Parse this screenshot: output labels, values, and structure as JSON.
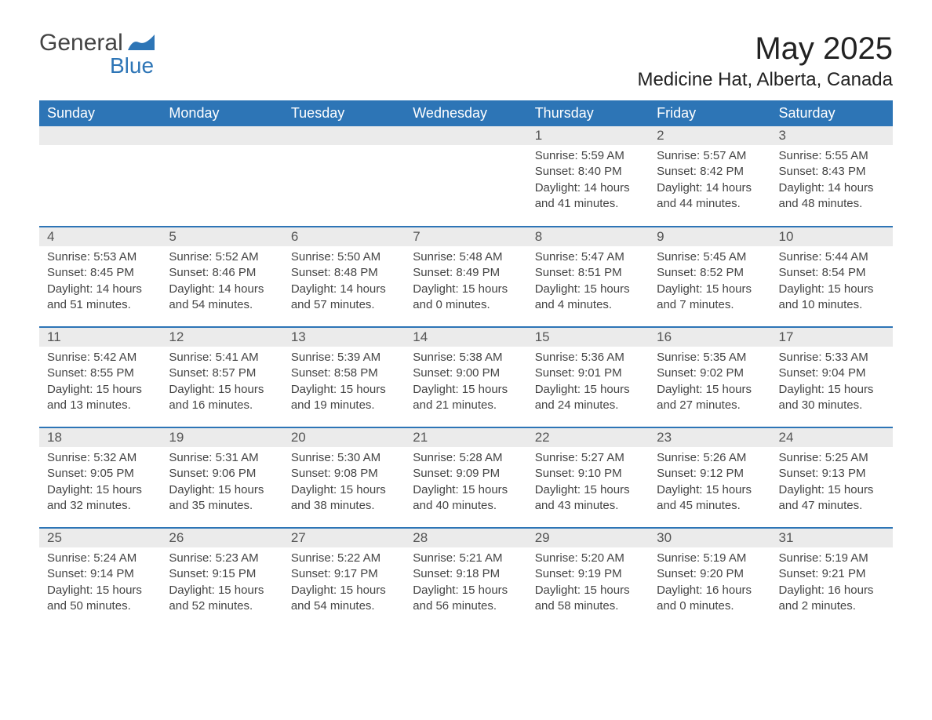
{
  "brand": {
    "word1": "General",
    "word2": "Blue",
    "logo_color": "#2d75b6"
  },
  "title": "May 2025",
  "location": "Medicine Hat, Alberta, Canada",
  "colors": {
    "header_bg": "#2d75b6",
    "header_text": "#ffffff",
    "daynum_bg": "#ebebeb",
    "daynum_text": "#555555",
    "body_text": "#444444",
    "rule": "#2d75b6",
    "page_bg": "#ffffff"
  },
  "weekdays": [
    "Sunday",
    "Monday",
    "Tuesday",
    "Wednesday",
    "Thursday",
    "Friday",
    "Saturday"
  ],
  "weeks": [
    [
      {
        "empty": true
      },
      {
        "empty": true
      },
      {
        "empty": true
      },
      {
        "empty": true
      },
      {
        "day": "1",
        "sunrise": "5:59 AM",
        "sunset": "8:40 PM",
        "daylight": "14 hours and 41 minutes."
      },
      {
        "day": "2",
        "sunrise": "5:57 AM",
        "sunset": "8:42 PM",
        "daylight": "14 hours and 44 minutes."
      },
      {
        "day": "3",
        "sunrise": "5:55 AM",
        "sunset": "8:43 PM",
        "daylight": "14 hours and 48 minutes."
      }
    ],
    [
      {
        "day": "4",
        "sunrise": "5:53 AM",
        "sunset": "8:45 PM",
        "daylight": "14 hours and 51 minutes."
      },
      {
        "day": "5",
        "sunrise": "5:52 AM",
        "sunset": "8:46 PM",
        "daylight": "14 hours and 54 minutes."
      },
      {
        "day": "6",
        "sunrise": "5:50 AM",
        "sunset": "8:48 PM",
        "daylight": "14 hours and 57 minutes."
      },
      {
        "day": "7",
        "sunrise": "5:48 AM",
        "sunset": "8:49 PM",
        "daylight": "15 hours and 0 minutes."
      },
      {
        "day": "8",
        "sunrise": "5:47 AM",
        "sunset": "8:51 PM",
        "daylight": "15 hours and 4 minutes."
      },
      {
        "day": "9",
        "sunrise": "5:45 AM",
        "sunset": "8:52 PM",
        "daylight": "15 hours and 7 minutes."
      },
      {
        "day": "10",
        "sunrise": "5:44 AM",
        "sunset": "8:54 PM",
        "daylight": "15 hours and 10 minutes."
      }
    ],
    [
      {
        "day": "11",
        "sunrise": "5:42 AM",
        "sunset": "8:55 PM",
        "daylight": "15 hours and 13 minutes."
      },
      {
        "day": "12",
        "sunrise": "5:41 AM",
        "sunset": "8:57 PM",
        "daylight": "15 hours and 16 minutes."
      },
      {
        "day": "13",
        "sunrise": "5:39 AM",
        "sunset": "8:58 PM",
        "daylight": "15 hours and 19 minutes."
      },
      {
        "day": "14",
        "sunrise": "5:38 AM",
        "sunset": "9:00 PM",
        "daylight": "15 hours and 21 minutes."
      },
      {
        "day": "15",
        "sunrise": "5:36 AM",
        "sunset": "9:01 PM",
        "daylight": "15 hours and 24 minutes."
      },
      {
        "day": "16",
        "sunrise": "5:35 AM",
        "sunset": "9:02 PM",
        "daylight": "15 hours and 27 minutes."
      },
      {
        "day": "17",
        "sunrise": "5:33 AM",
        "sunset": "9:04 PM",
        "daylight": "15 hours and 30 minutes."
      }
    ],
    [
      {
        "day": "18",
        "sunrise": "5:32 AM",
        "sunset": "9:05 PM",
        "daylight": "15 hours and 32 minutes."
      },
      {
        "day": "19",
        "sunrise": "5:31 AM",
        "sunset": "9:06 PM",
        "daylight": "15 hours and 35 minutes."
      },
      {
        "day": "20",
        "sunrise": "5:30 AM",
        "sunset": "9:08 PM",
        "daylight": "15 hours and 38 minutes."
      },
      {
        "day": "21",
        "sunrise": "5:28 AM",
        "sunset": "9:09 PM",
        "daylight": "15 hours and 40 minutes."
      },
      {
        "day": "22",
        "sunrise": "5:27 AM",
        "sunset": "9:10 PM",
        "daylight": "15 hours and 43 minutes."
      },
      {
        "day": "23",
        "sunrise": "5:26 AM",
        "sunset": "9:12 PM",
        "daylight": "15 hours and 45 minutes."
      },
      {
        "day": "24",
        "sunrise": "5:25 AM",
        "sunset": "9:13 PM",
        "daylight": "15 hours and 47 minutes."
      }
    ],
    [
      {
        "day": "25",
        "sunrise": "5:24 AM",
        "sunset": "9:14 PM",
        "daylight": "15 hours and 50 minutes."
      },
      {
        "day": "26",
        "sunrise": "5:23 AM",
        "sunset": "9:15 PM",
        "daylight": "15 hours and 52 minutes."
      },
      {
        "day": "27",
        "sunrise": "5:22 AM",
        "sunset": "9:17 PM",
        "daylight": "15 hours and 54 minutes."
      },
      {
        "day": "28",
        "sunrise": "5:21 AM",
        "sunset": "9:18 PM",
        "daylight": "15 hours and 56 minutes."
      },
      {
        "day": "29",
        "sunrise": "5:20 AM",
        "sunset": "9:19 PM",
        "daylight": "15 hours and 58 minutes."
      },
      {
        "day": "30",
        "sunrise": "5:19 AM",
        "sunset": "9:20 PM",
        "daylight": "16 hours and 0 minutes."
      },
      {
        "day": "31",
        "sunrise": "5:19 AM",
        "sunset": "9:21 PM",
        "daylight": "16 hours and 2 minutes."
      }
    ]
  ],
  "labels": {
    "sunrise": "Sunrise: ",
    "sunset": "Sunset: ",
    "daylight": "Daylight: "
  }
}
